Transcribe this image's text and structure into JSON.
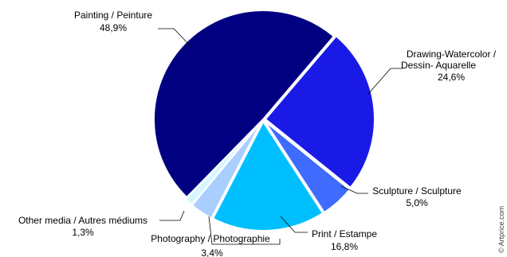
{
  "chart_data": {
    "type": "pie",
    "title": "",
    "slices": [
      {
        "label_line1": "Painting / Peinture",
        "label_line2": "",
        "value_label": "48,9%",
        "value": 48.9,
        "color": "#000080"
      },
      {
        "label_line1": "Drawing-Watercolor /",
        "label_line2": "Dessin- Aquarelle",
        "value_label": "24,6%",
        "value": 24.6,
        "color": "#1a1ae6"
      },
      {
        "label_line1": "Sculpture / Sculpture",
        "label_line2": "",
        "value_label": "5,0%",
        "value": 5.0,
        "color": "#3f6bff"
      },
      {
        "label_line1": "Print / Estampe",
        "label_line2": "",
        "value_label": "16,8%",
        "value": 16.8,
        "color": "#00bfff"
      },
      {
        "label_line1": "Photography / Photographie",
        "label_line2": "",
        "value_label": "3,4%",
        "value": 3.4,
        "color": "#a8cfff"
      },
      {
        "label_line1": "Other media / Autres médiums",
        "label_line2": "",
        "value_label": "1,3%",
        "value": 1.3,
        "color": "#d8f6ff"
      }
    ],
    "legend": "none",
    "watermark": "© Artprice.com"
  }
}
